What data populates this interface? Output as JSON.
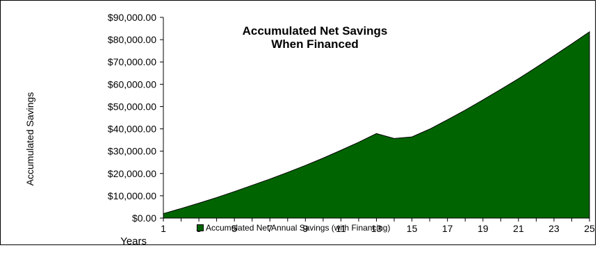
{
  "chart_data": {
    "type": "area",
    "title_lines": [
      "Accumulated Net Savings",
      "When Financed"
    ],
    "xlabel": "Years",
    "ylabel": "Accumulated Savings",
    "x": [
      1,
      2,
      3,
      4,
      5,
      6,
      7,
      8,
      9,
      10,
      11,
      12,
      13,
      14,
      15,
      16,
      17,
      18,
      19,
      20,
      21,
      22,
      23,
      24,
      25
    ],
    "x_tick_labels": [
      "1",
      "3",
      "5",
      "7",
      "9",
      "11",
      "13",
      "15",
      "17",
      "19",
      "21",
      "23",
      "25"
    ],
    "y_ticks": [
      0,
      10000,
      20000,
      30000,
      40000,
      50000,
      60000,
      70000,
      80000,
      90000
    ],
    "y_tick_labels": [
      "$0.00",
      "$10,000.00",
      "$20,000.00",
      "$30,000.00",
      "$40,000.00",
      "$50,000.00",
      "$60,000.00",
      "$70,000.00",
      "$80,000.00",
      "$90,000.00"
    ],
    "ylim": [
      0,
      90000
    ],
    "series": [
      {
        "name": "Accumulated Net Annual Savings (with Financing)",
        "color": "#006400",
        "values": [
          2000,
          4300,
          6700,
          9200,
          11900,
          14700,
          17500,
          20500,
          23600,
          26900,
          30400,
          34000,
          37900,
          35700,
          36400,
          39900,
          44100,
          48400,
          53000,
          57700,
          62500,
          67600,
          72800,
          78100,
          83500
        ]
      }
    ]
  }
}
